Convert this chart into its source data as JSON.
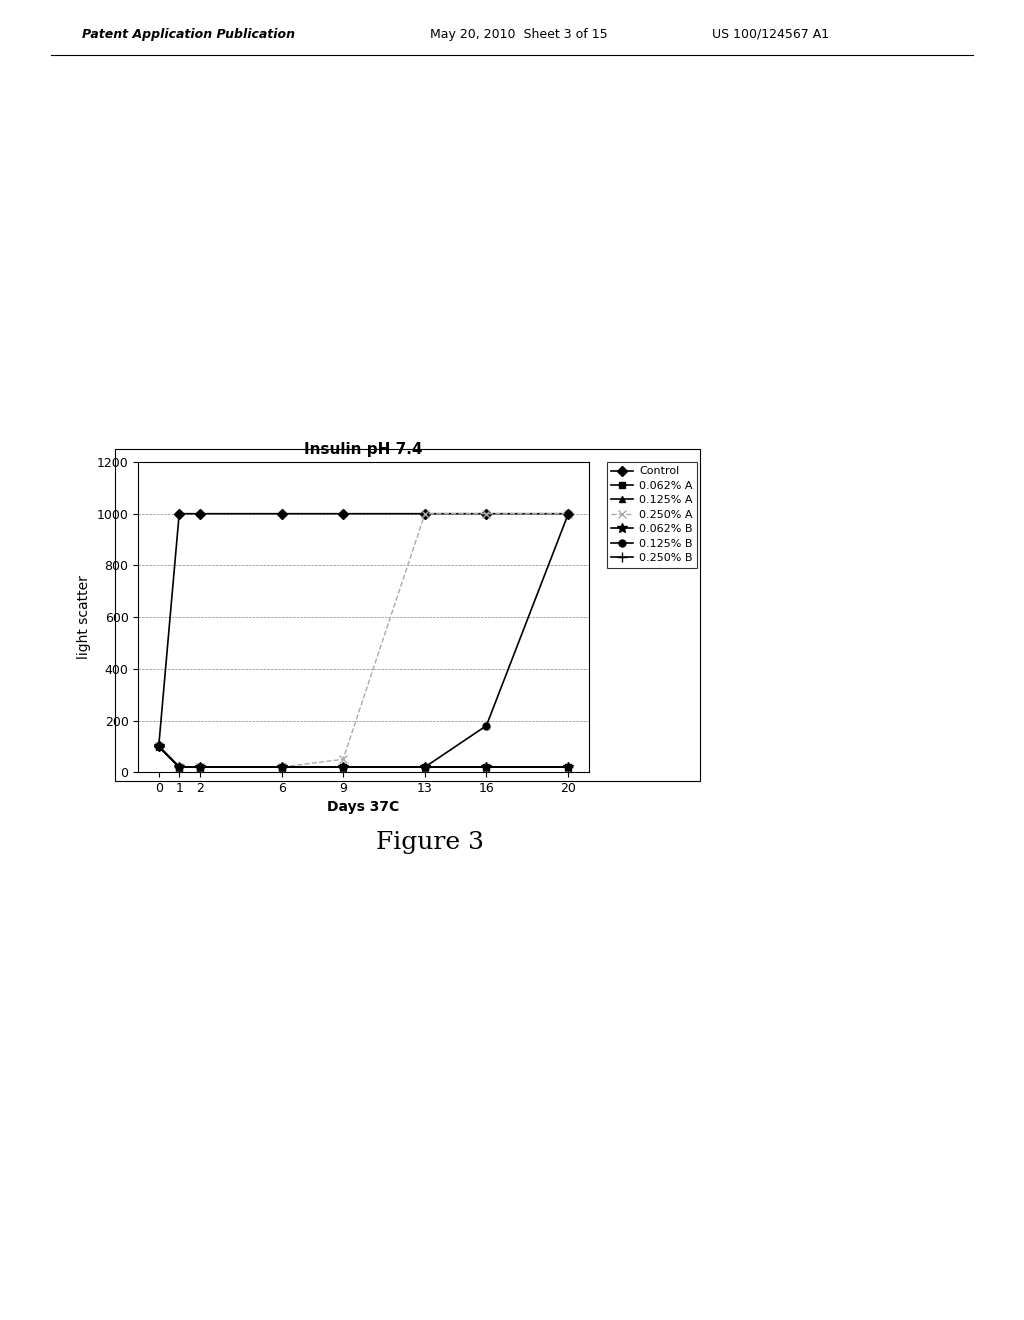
{
  "title": "Insulin pH 7.4",
  "xlabel": "Days 37C",
  "ylabel": "light scatter",
  "x_ticks": [
    0,
    1,
    2,
    6,
    9,
    13,
    16,
    20
  ],
  "ylim": [
    0,
    1200
  ],
  "yticks": [
    0,
    200,
    400,
    600,
    800,
    1000,
    1200
  ],
  "series": [
    {
      "label": "Control",
      "x": [
        0,
        1,
        2,
        6,
        9,
        13,
        16,
        20
      ],
      "y": [
        100,
        1000,
        1000,
        1000,
        1000,
        1000,
        1000,
        1000
      ],
      "color": "#000000",
      "marker": "D",
      "markersize": 5,
      "linestyle": "-",
      "linewidth": 1.2
    },
    {
      "label": "0.062% A",
      "x": [
        0,
        1,
        2,
        6,
        9,
        13,
        16,
        20
      ],
      "y": [
        100,
        20,
        20,
        20,
        20,
        20,
        20,
        20
      ],
      "color": "#000000",
      "marker": "s",
      "markersize": 5,
      "linestyle": "-",
      "linewidth": 1.2
    },
    {
      "label": "0.125% A",
      "x": [
        0,
        1,
        2,
        6,
        9,
        13,
        16,
        20
      ],
      "y": [
        100,
        20,
        20,
        20,
        20,
        20,
        20,
        20
      ],
      "color": "#000000",
      "marker": "^",
      "markersize": 5,
      "linestyle": "-",
      "linewidth": 1.2
    },
    {
      "label": "0.250% A",
      "x": [
        0,
        1,
        2,
        6,
        9,
        13,
        16,
        20
      ],
      "y": [
        100,
        20,
        20,
        20,
        50,
        1000,
        1000,
        1000
      ],
      "color": "#aaaaaa",
      "marker": "x",
      "markersize": 6,
      "linestyle": "--",
      "linewidth": 1.0
    },
    {
      "label": "0.062% B",
      "x": [
        0,
        1,
        2,
        6,
        9,
        13,
        16,
        20
      ],
      "y": [
        100,
        20,
        20,
        20,
        20,
        20,
        20,
        20
      ],
      "color": "#000000",
      "marker": "*",
      "markersize": 7,
      "linestyle": "-",
      "linewidth": 1.2
    },
    {
      "label": "0.125% B",
      "x": [
        0,
        1,
        2,
        6,
        9,
        13,
        16,
        20
      ],
      "y": [
        100,
        20,
        20,
        20,
        20,
        20,
        180,
        1000
      ],
      "color": "#000000",
      "marker": "o",
      "markersize": 5,
      "linestyle": "-",
      "linewidth": 1.2
    },
    {
      "label": "0.250% B",
      "x": [
        0,
        1,
        2,
        6,
        9,
        13,
        16,
        20
      ],
      "y": [
        100,
        20,
        20,
        20,
        20,
        20,
        20,
        20
      ],
      "color": "#000000",
      "marker": "+",
      "markersize": 7,
      "linestyle": "-",
      "linewidth": 1.2
    }
  ],
  "figure_bg": "#ffffff",
  "plot_bg": "#ffffff",
  "title_fontsize": 11,
  "axis_label_fontsize": 10,
  "tick_fontsize": 9,
  "legend_fontsize": 8,
  "header_left": "Patent Application Publication",
  "header_mid": "May 20, 2010  Sheet 3 of 15",
  "header_right": "US 100/124567 A1",
  "figure_caption": "Figure 3"
}
